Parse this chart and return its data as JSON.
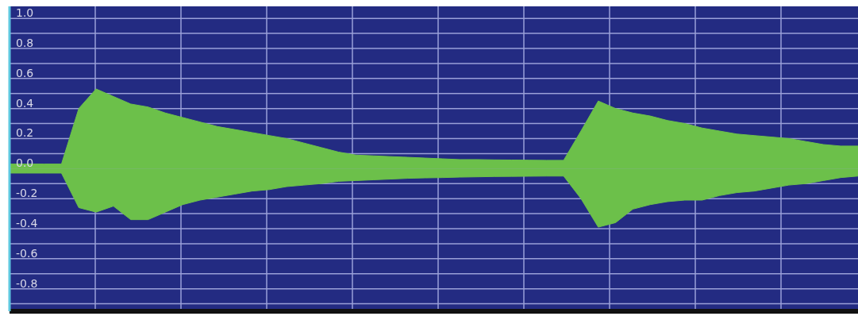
{
  "chart_data": {
    "type": "area",
    "categories": [
      null,
      null,
      null,
      null,
      null,
      null,
      null,
      null,
      null,
      null,
      null,
      null,
      null,
      null,
      null,
      null,
      null,
      null,
      null,
      null,
      null,
      null,
      null,
      null,
      null,
      null,
      null,
      null,
      null,
      null,
      null,
      null,
      null,
      null,
      null,
      null,
      null,
      null,
      null,
      null,
      null,
      null,
      null,
      null,
      null,
      null,
      null,
      null,
      null,
      null
    ],
    "series": [
      {
        "color": "#6cc04a",
        "values": [
          0.03,
          0.03,
          0.03,
          0.03,
          0.4,
          0.53,
          0.48,
          0.43,
          0.41,
          0.37,
          0.34,
          0.31,
          0.28,
          0.26,
          0.24,
          0.22,
          0.2,
          0.17,
          0.14,
          0.11,
          0.09,
          0.085,
          0.08,
          0.075,
          0.07,
          0.065,
          0.06,
          0.06,
          0.058,
          0.057,
          0.056,
          0.055,
          0.055,
          0.25,
          0.45,
          0.4,
          0.37,
          0.35,
          0.32,
          0.3,
          0.27,
          0.25,
          0.23,
          0.22,
          0.21,
          0.2,
          0.18,
          0.16,
          0.15,
          0.15
        ]
      },
      {
        "color": "#6cc04a",
        "values": [
          -0.03,
          -0.03,
          -0.03,
          -0.03,
          -0.26,
          -0.29,
          -0.25,
          -0.34,
          -0.34,
          -0.29,
          -0.24,
          -0.21,
          -0.19,
          -0.17,
          -0.15,
          -0.14,
          -0.12,
          -0.11,
          -0.1,
          -0.085,
          -0.08,
          -0.075,
          -0.07,
          -0.065,
          -0.062,
          -0.06,
          -0.057,
          -0.055,
          -0.053,
          -0.052,
          -0.051,
          -0.05,
          -0.05,
          -0.2,
          -0.39,
          -0.36,
          -0.27,
          -0.24,
          -0.22,
          -0.21,
          -0.21,
          -0.18,
          -0.16,
          -0.15,
          -0.13,
          -0.11,
          -0.1,
          -0.08,
          -0.06,
          -0.05
        ]
      }
    ],
    "ylim": [
      -0.95,
      1.08
    ],
    "yticks": [
      {
        "value": -0.9,
        "label": null
      },
      {
        "value": -0.8,
        "label": "-0.8"
      },
      {
        "value": -0.7,
        "label": null
      },
      {
        "value": -0.6,
        "label": "-0.6"
      },
      {
        "value": -0.5,
        "label": null
      },
      {
        "value": -0.4,
        "label": "-0.4"
      },
      {
        "value": -0.3,
        "label": null
      },
      {
        "value": -0.2,
        "label": "-0.2"
      },
      {
        "value": -0.1,
        "label": null
      },
      {
        "value": 0,
        "label": "0.0"
      },
      {
        "value": 0.1,
        "label": null
      },
      {
        "value": 0.2,
        "label": "0.2"
      },
      {
        "value": 0.3,
        "label": null
      },
      {
        "value": 0.4,
        "label": "0.4"
      },
      {
        "value": 0.5,
        "label": null
      },
      {
        "value": 0.6,
        "label": "0.6"
      },
      {
        "value": 0.7,
        "label": null
      },
      {
        "value": 0.8,
        "label": "0.8"
      },
      {
        "value": 0.9,
        "label": null
      },
      {
        "value": 1.0,
        "label": "1.0"
      }
    ],
    "grid": true,
    "tick_labels": "y"
  }
}
